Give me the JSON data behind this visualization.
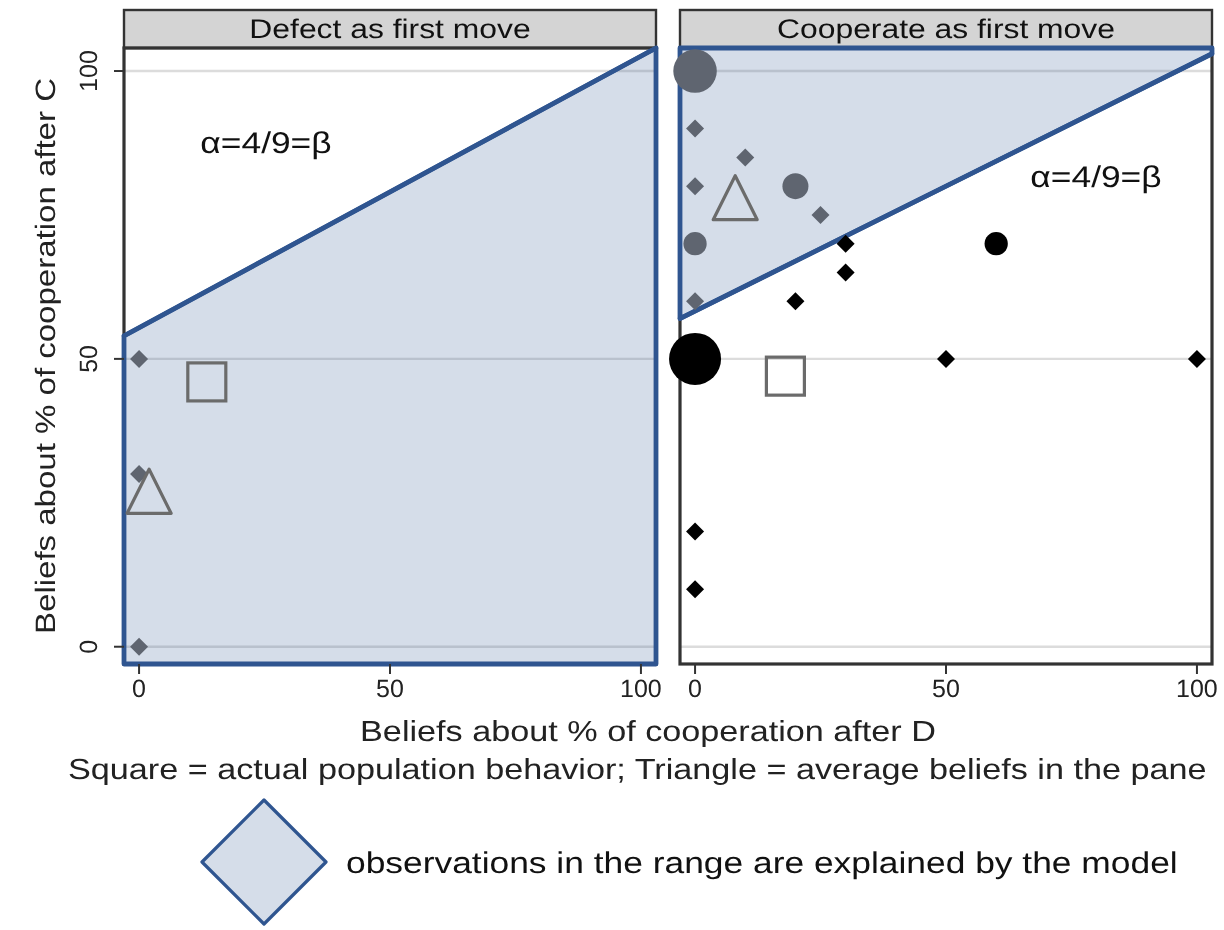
{
  "chart_data": [
    {
      "type": "scatter",
      "title": "Defect as first move",
      "xlabel": "Beliefs about % of cooperation after D",
      "ylabel": "Beliefs about % of cooperation after C",
      "annotations": [
        "α=4/9=β",
        "Square = actual population behavior; Triangle = average beliefs in the pane"
      ],
      "xlim": [
        -3,
        103
      ],
      "ylim": [
        -3,
        104
      ],
      "xticks": [
        0,
        50,
        100
      ],
      "yticks": [
        0,
        50,
        100
      ],
      "grid": "y",
      "legend": "bottom",
      "series": [
        {
          "type": "line",
          "name": "observations in the range are explained by the model",
          "color": "#2f5590",
          "x": [
            -3,
            103
          ],
          "values": [
            54,
            104
          ],
          "lower": [
            -3,
            -3
          ],
          "upper": [
            54,
            104
          ]
        },
        {
          "color": "#5f6570",
          "marker": "diamond",
          "x": [
            0,
            0,
            0
          ],
          "values": [
            50,
            30,
            0
          ]
        },
        {
          "color": "#6b6b6b",
          "marker": "square",
          "x": [
            13.5
          ],
          "values": [
            46
          ]
        },
        {
          "color": "#6b6b6b",
          "marker": "triangle",
          "x": [
            2
          ],
          "values": [
            27
          ]
        }
      ]
    },
    {
      "type": "scatter",
      "title": "Cooperate as first move",
      "annotations": [
        "α=4/9=β"
      ],
      "xlim": [
        -3,
        103
      ],
      "ylim": [
        -3,
        104
      ],
      "xticks": [
        0,
        50,
        100
      ],
      "yticks": [
        0,
        50,
        100
      ],
      "tick_labels": "x",
      "grid": "y",
      "series": [
        {
          "type": "line",
          "color": "#2f5590",
          "x": [
            -3,
            103
          ],
          "values": [
            57,
            103
          ],
          "lower": [
            57,
            103
          ],
          "upper": [
            104,
            104
          ]
        },
        {
          "type": "bubble",
          "color": "#000000",
          "x": [
            60,
            0
          ],
          "values": [
            70,
            50
          ],
          "sizes": [
            0.2,
            1
          ]
        },
        {
          "color": "#000000",
          "marker": "diamond",
          "x": [
            30,
            30,
            20,
            50,
            100,
            0,
            0
          ],
          "values": [
            70,
            65,
            60,
            50,
            50,
            20,
            10
          ]
        },
        {
          "type": "bubble",
          "color": "#5f6570",
          "x": [
            0,
            20,
            0
          ],
          "values": [
            100,
            80,
            70
          ],
          "sizes": [
            0.7,
            0.25,
            0.2
          ]
        },
        {
          "color": "#5f6570",
          "marker": "diamond",
          "x": [
            0,
            10,
            0,
            25,
            0
          ],
          "values": [
            90,
            85,
            80,
            75,
            60
          ]
        },
        {
          "color": "#6b6b6b",
          "marker": "square",
          "x": [
            18
          ],
          "values": [
            47
          ]
        },
        {
          "color": "#6b6b6b",
          "marker": "triangle",
          "x": [
            8
          ],
          "values": [
            78
          ]
        }
      ]
    }
  ]
}
